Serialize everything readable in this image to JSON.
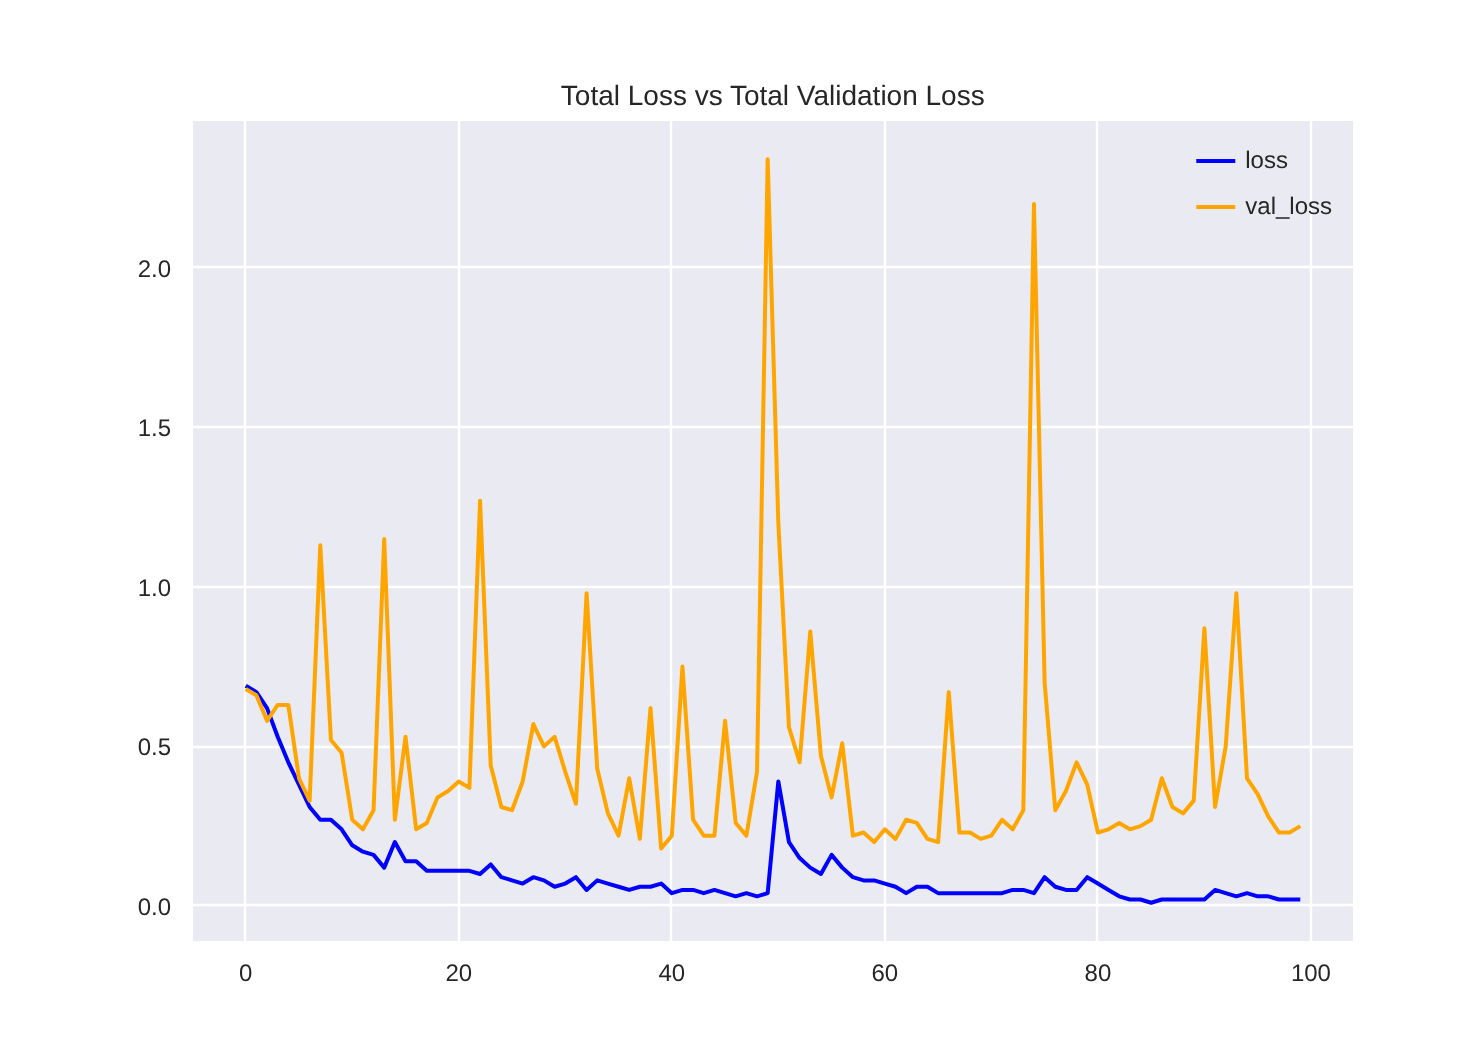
{
  "chart_data": {
    "type": "line",
    "title": "Total Loss vs Total Validation Loss",
    "x": [
      0,
      1,
      2,
      3,
      4,
      5,
      6,
      7,
      8,
      9,
      10,
      11,
      12,
      13,
      14,
      15,
      16,
      17,
      18,
      19,
      20,
      21,
      22,
      23,
      24,
      25,
      26,
      27,
      28,
      29,
      30,
      31,
      32,
      33,
      34,
      35,
      36,
      37,
      38,
      39,
      40,
      41,
      42,
      43,
      44,
      45,
      46,
      47,
      48,
      49,
      50,
      51,
      52,
      53,
      54,
      55,
      56,
      57,
      58,
      59,
      60,
      61,
      62,
      63,
      64,
      65,
      66,
      67,
      68,
      69,
      70,
      71,
      72,
      73,
      74,
      75,
      76,
      77,
      78,
      79,
      80,
      81,
      82,
      83,
      84,
      85,
      86,
      87,
      88,
      89,
      90,
      91,
      92,
      93,
      94,
      95,
      96,
      97,
      98,
      99
    ],
    "series": [
      {
        "name": "loss",
        "color": "#0000ff",
        "values": [
          0.69,
          0.67,
          0.62,
          0.53,
          0.45,
          0.38,
          0.31,
          0.27,
          0.27,
          0.24,
          0.19,
          0.17,
          0.16,
          0.12,
          0.2,
          0.14,
          0.14,
          0.11,
          0.11,
          0.11,
          0.11,
          0.11,
          0.1,
          0.13,
          0.09,
          0.08,
          0.07,
          0.09,
          0.08,
          0.06,
          0.07,
          0.09,
          0.05,
          0.08,
          0.07,
          0.06,
          0.05,
          0.06,
          0.06,
          0.07,
          0.04,
          0.05,
          0.05,
          0.04,
          0.05,
          0.04,
          0.03,
          0.04,
          0.03,
          0.04,
          0.39,
          0.2,
          0.15,
          0.12,
          0.1,
          0.16,
          0.12,
          0.09,
          0.08,
          0.08,
          0.07,
          0.06,
          0.04,
          0.06,
          0.06,
          0.04,
          0.04,
          0.04,
          0.04,
          0.04,
          0.04,
          0.04,
          0.05,
          0.05,
          0.04,
          0.09,
          0.06,
          0.05,
          0.05,
          0.09,
          0.07,
          0.05,
          0.03,
          0.02,
          0.02,
          0.01,
          0.02,
          0.02,
          0.02,
          0.02,
          0.02,
          0.05,
          0.04,
          0.03,
          0.04,
          0.03,
          0.03,
          0.02,
          0.02,
          0.02
        ]
      },
      {
        "name": "val_loss",
        "color": "#ffa500",
        "values": [
          0.68,
          0.66,
          0.58,
          0.63,
          0.63,
          0.4,
          0.33,
          1.13,
          0.52,
          0.48,
          0.27,
          0.24,
          0.3,
          1.15,
          0.27,
          0.53,
          0.24,
          0.26,
          0.34,
          0.36,
          0.39,
          0.37,
          1.27,
          0.44,
          0.31,
          0.3,
          0.39,
          0.57,
          0.5,
          0.53,
          0.42,
          0.32,
          0.98,
          0.43,
          0.29,
          0.22,
          0.4,
          0.21,
          0.62,
          0.18,
          0.22,
          0.75,
          0.27,
          0.22,
          0.22,
          0.58,
          0.26,
          0.22,
          0.42,
          2.34,
          1.2,
          0.56,
          0.45,
          0.86,
          0.47,
          0.34,
          0.51,
          0.22,
          0.23,
          0.2,
          0.24,
          0.21,
          0.27,
          0.26,
          0.21,
          0.2,
          0.67,
          0.23,
          0.23,
          0.21,
          0.22,
          0.27,
          0.24,
          0.3,
          2.2,
          0.7,
          0.3,
          0.36,
          0.45,
          0.38,
          0.23,
          0.24,
          0.26,
          0.24,
          0.25,
          0.27,
          0.4,
          0.31,
          0.29,
          0.33,
          0.87,
          0.31,
          0.5,
          0.98,
          0.4,
          0.35,
          0.28,
          0.23,
          0.23,
          0.25
        ]
      }
    ],
    "xlim": [
      -4.95,
      103.95
    ],
    "ylim": [
      -0.11,
      2.46
    ],
    "xticks": [
      0,
      20,
      40,
      60,
      80,
      100
    ],
    "yticks": [
      {
        "value": 0,
        "label": "0.0"
      },
      {
        "value": 0.5,
        "label": "0.5"
      },
      {
        "value": 1,
        "label": "1.0"
      },
      {
        "value": 1.5,
        "label": "1.5"
      },
      {
        "value": 2,
        "label": "2.0"
      }
    ],
    "grid": true,
    "legend": "top right",
    "line_style": "solid",
    "marker": "none"
  }
}
